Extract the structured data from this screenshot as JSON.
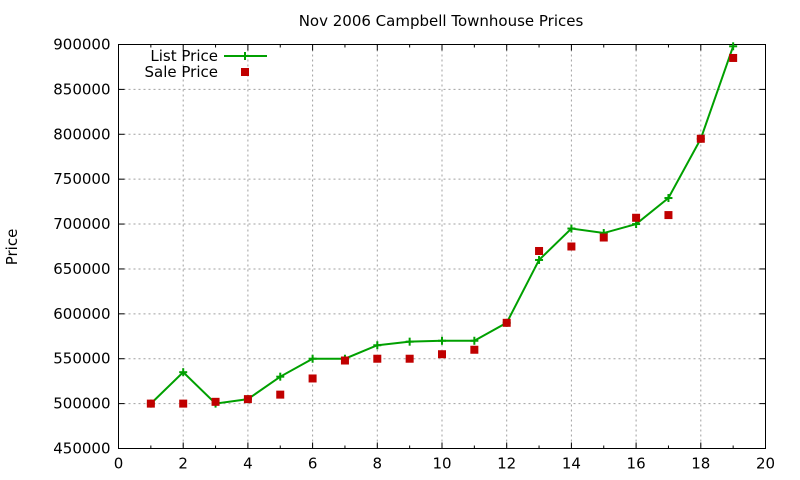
{
  "chart_data": {
    "type": "line",
    "title": "Nov 2006 Campbell Townhouse Prices",
    "xlabel": "",
    "ylabel": "Price",
    "xlim": [
      0,
      20
    ],
    "ylim": [
      450000,
      900000
    ],
    "x_ticks": [
      "0",
      "2",
      "4",
      "6",
      "8",
      "10",
      "12",
      "14",
      "16",
      "18",
      "20"
    ],
    "y_ticks": [
      "450000",
      "500000",
      "550000",
      "600000",
      "650000",
      "700000",
      "750000",
      "800000",
      "850000",
      "900000"
    ],
    "grid": true,
    "legend_position": "top-left",
    "series": [
      {
        "name": "List Price",
        "style": "line-with-plus-markers",
        "color": "#00a000",
        "points": [
          [
            1,
            500000
          ],
          [
            2,
            535000
          ],
          [
            3,
            500000
          ],
          [
            4,
            505000
          ],
          [
            5,
            530000
          ],
          [
            6,
            550000
          ],
          [
            7,
            550000
          ],
          [
            8,
            565000
          ],
          [
            9,
            569000
          ],
          [
            10,
            570000
          ],
          [
            11,
            570000
          ],
          [
            12,
            590000
          ],
          [
            13,
            660000
          ],
          [
            14,
            695000
          ],
          [
            15,
            690000
          ],
          [
            16,
            700000
          ],
          [
            17,
            729000
          ],
          [
            18,
            795000
          ],
          [
            19,
            898000
          ]
        ]
      },
      {
        "name": "Sale Price",
        "style": "square-markers",
        "color": "#c00000",
        "points": [
          [
            1,
            500000
          ],
          [
            2,
            500000
          ],
          [
            3,
            502000
          ],
          [
            4,
            505000
          ],
          [
            5,
            510000
          ],
          [
            6,
            528000
          ],
          [
            7,
            548000
          ],
          [
            8,
            550000
          ],
          [
            9,
            550000
          ],
          [
            10,
            555000
          ],
          [
            11,
            560000
          ],
          [
            12,
            590000
          ],
          [
            13,
            670000
          ],
          [
            14,
            675000
          ],
          [
            15,
            685000
          ],
          [
            16,
            707000
          ],
          [
            17,
            710000
          ],
          [
            18,
            795000
          ],
          [
            19,
            885000
          ]
        ]
      }
    ]
  }
}
